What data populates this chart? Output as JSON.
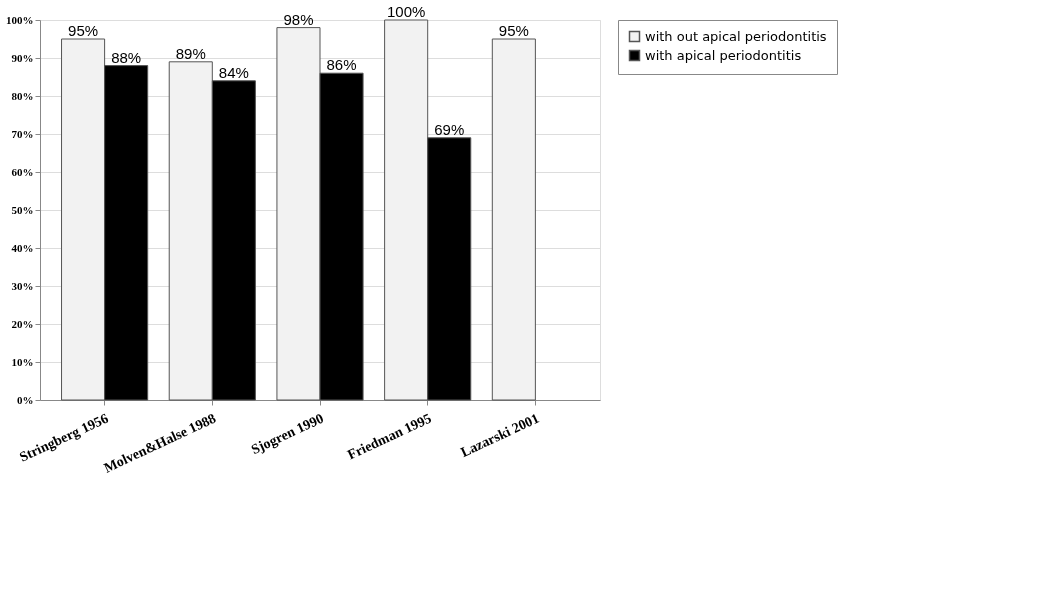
{
  "chart_data": {
    "type": "bar",
    "categories": [
      "Stringberg 1956",
      "Molven&Halse 1988",
      "Sjogren 1990",
      "Friedman 1995",
      "Lazarski 2001"
    ],
    "series": [
      {
        "name": "with out apical periodontitis",
        "color": "#f2f2f2",
        "values": [
          95,
          89,
          98,
          100,
          95
        ],
        "value_labels": [
          "95%",
          "89%",
          "98%",
          "100%",
          "95%"
        ]
      },
      {
        "name": "with apical periodontitis",
        "color": "#000000",
        "values": [
          88,
          84,
          86,
          69,
          null
        ],
        "value_labels": [
          "88%",
          "84%",
          "86%",
          "69%",
          null
        ]
      }
    ],
    "ylim": [
      0,
      100
    ],
    "yticks": [
      {
        "value": 0,
        "label": "0%"
      },
      {
        "value": 10,
        "label": "10%"
      },
      {
        "value": 20,
        "label": "20%"
      },
      {
        "value": 30,
        "label": "30%"
      },
      {
        "value": 40,
        "label": "40%"
      },
      {
        "value": 50,
        "label": "50%"
      },
      {
        "value": 60,
        "label": "60%"
      },
      {
        "value": 70,
        "label": "70%"
      },
      {
        "value": 80,
        "label": "80%"
      },
      {
        "value": 90,
        "label": "90%"
      },
      {
        "value": 100,
        "label": "100%"
      }
    ],
    "grid": "y",
    "legend": "right"
  }
}
